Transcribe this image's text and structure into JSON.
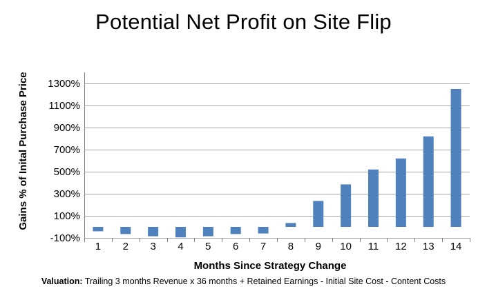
{
  "chart_data": {
    "type": "bar",
    "title": "Potential Net Profit on Site Flip",
    "xlabel": "Months Since Strategy Change",
    "ylabel": "Gains % of Inital Purchase Price",
    "categories": [
      "1",
      "2",
      "3",
      "4",
      "5",
      "6",
      "7",
      "8",
      "9",
      "10",
      "11",
      "12",
      "13",
      "14"
    ],
    "values": [
      -40,
      -65,
      -85,
      -95,
      -85,
      -65,
      -60,
      35,
      235,
      385,
      520,
      620,
      820,
      1250
    ],
    "unit": "%",
    "ylim": [
      -100,
      1400
    ],
    "yticks": [
      -100,
      100,
      300,
      500,
      700,
      900,
      1100,
      1300
    ],
    "ytick_labels": [
      "-100%",
      "100%",
      "300%",
      "500%",
      "700%",
      "900%",
      "1100%",
      "1300%"
    ],
    "grid": true,
    "bar_color": "#4F81BD",
    "grid_color": "#A6A6A6"
  },
  "footnote": {
    "label": "Valuation:",
    "text": " Trailing 3 months Revenue x 36 months + Retained Earnings - Initial Site Cost - Content Costs"
  }
}
